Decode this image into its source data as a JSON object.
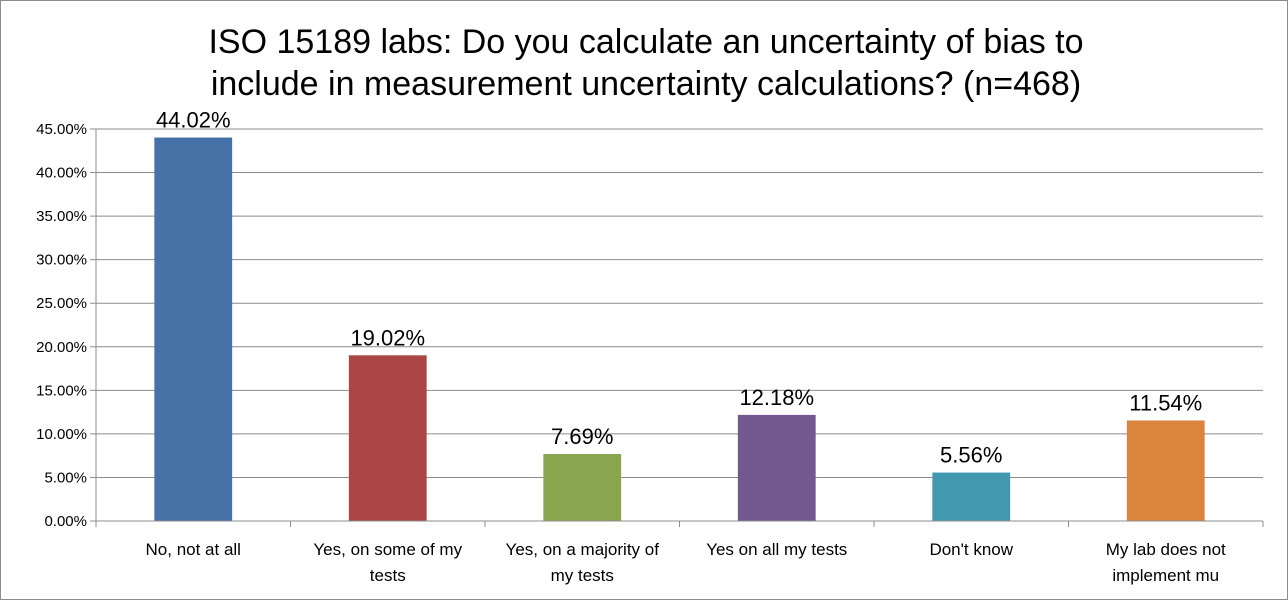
{
  "chart_data": {
    "type": "bar",
    "title_lines": [
      "ISO 15189 labs: Do you calculate an uncertainty of bias to",
      "include in measurement uncertainty calculations? (n=468)"
    ],
    "categories": [
      [
        "No, not at all"
      ],
      [
        "Yes, on some of my",
        "tests"
      ],
      [
        "Yes, on a majority of",
        "my tests"
      ],
      [
        "Yes on all my tests"
      ],
      [
        "Don't know"
      ],
      [
        "My lab does not",
        "implement mu"
      ]
    ],
    "values": [
      44.02,
      19.02,
      7.69,
      12.18,
      5.56,
      11.54
    ],
    "value_labels": [
      "44.02%",
      "19.02%",
      "7.69%",
      "12.18%",
      "5.56%",
      "11.54%"
    ],
    "colors": [
      "#4572A7",
      "#AA4643",
      "#89A54E",
      "#71588F",
      "#4198AF",
      "#DB843D"
    ],
    "yticks": [
      0,
      5,
      10,
      15,
      20,
      25,
      30,
      35,
      40,
      45
    ],
    "ytick_labels": [
      "0.00%",
      "5.00%",
      "10.00%",
      "15.00%",
      "20.00%",
      "25.00%",
      "30.00%",
      "35.00%",
      "40.00%",
      "45.00%"
    ],
    "ylim": [
      0,
      45
    ],
    "grid": true,
    "xlabel": "",
    "ylabel": "",
    "colors_ui": {
      "grid": "#8c8c8c",
      "axis": "#8c8c8c"
    }
  }
}
